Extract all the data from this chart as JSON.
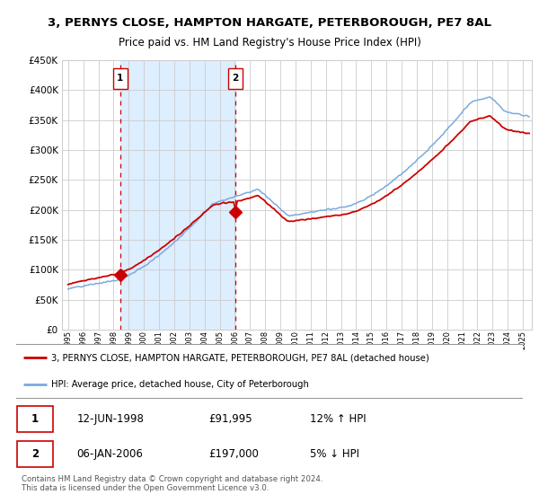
{
  "title": "3, PERNYS CLOSE, HAMPTON HARGATE, PETERBOROUGH, PE7 8AL",
  "subtitle": "Price paid vs. HM Land Registry's House Price Index (HPI)",
  "legend_line1": "3, PERNYS CLOSE, HAMPTON HARGATE, PETERBOROUGH, PE7 8AL (detached house)",
  "legend_line2": "HPI: Average price, detached house, City of Peterborough",
  "sale1_date": "12-JUN-1998",
  "sale1_price": "£91,995",
  "sale1_hpi": "12% ↑ HPI",
  "sale2_date": "06-JAN-2006",
  "sale2_price": "£197,000",
  "sale2_hpi": "5% ↓ HPI",
  "footer": "Contains HM Land Registry data © Crown copyright and database right 2024.\nThis data is licensed under the Open Government Licence v3.0.",
  "sale1_x": 1998.44,
  "sale1_y": 91995,
  "sale2_x": 2006.02,
  "sale2_y": 197000,
  "shade_start": 1998.44,
  "shade_end": 2006.02,
  "red_color": "#cc0000",
  "blue_color": "#7aaadd",
  "shade_color": "#ddeeff",
  "grid_color": "#cccccc",
  "bg_color": "#ffffff",
  "ylim_min": 0,
  "ylim_max": 450000,
  "xlim_start": 1994.6,
  "xlim_end": 2025.6,
  "yticks": [
    0,
    50000,
    100000,
    150000,
    200000,
    250000,
    300000,
    350000,
    400000,
    450000
  ],
  "xtick_start": 1995,
  "xtick_end": 2025
}
